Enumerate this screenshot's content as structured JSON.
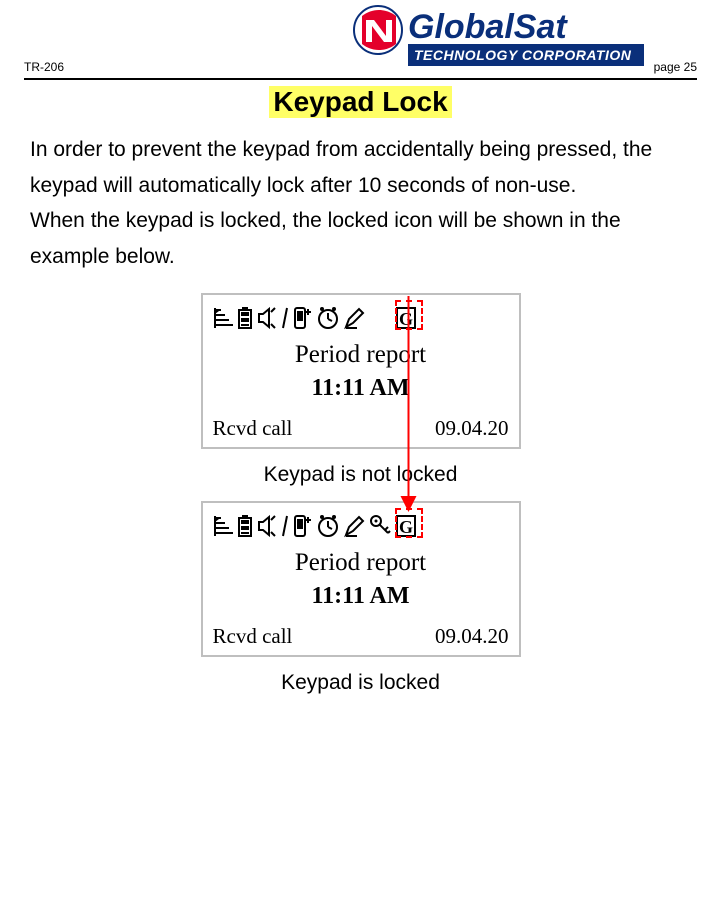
{
  "header": {
    "doc_code": "TR-206",
    "page_label": "page 25",
    "logo": {
      "brand_top": "GlobalSat",
      "brand_bottom": "TECHNOLOGY CORPORATION",
      "swoosh_color": "#e4002b",
      "text_color": "#0a2f7a",
      "bottom_bg": "#0a2f7a",
      "bottom_text_color": "#ffffff",
      "circle_outline": "#0a2f7a",
      "circle_fill": "#ffffff"
    }
  },
  "title": "Keypad Lock",
  "title_highlight": "#ffff66",
  "paragraph1": "In order to prevent the keypad from accidentally being pressed, the keypad will automatically lock after 10 seconds of non-use.",
  "paragraph2": "When the keypad is locked, the locked icon will be shown in the example below.",
  "screens": {
    "unlocked": {
      "period_text": "Period report",
      "time_text": "11:11 AM",
      "left_text": "Rcvd call",
      "right_text": "09.04.20",
      "has_key_icon": false,
      "caption": "Keypad is not locked"
    },
    "locked": {
      "period_text": "Period report",
      "time_text": "11:11 AM",
      "left_text": "Rcvd call",
      "right_text": "09.04.20",
      "has_key_icon": true,
      "caption": "Keypad is locked"
    }
  },
  "arrow": {
    "color": "#ff0000",
    "stroke_width": 2
  },
  "dashed_box_color": "#ff0000",
  "icons": {
    "color": "#000000"
  }
}
